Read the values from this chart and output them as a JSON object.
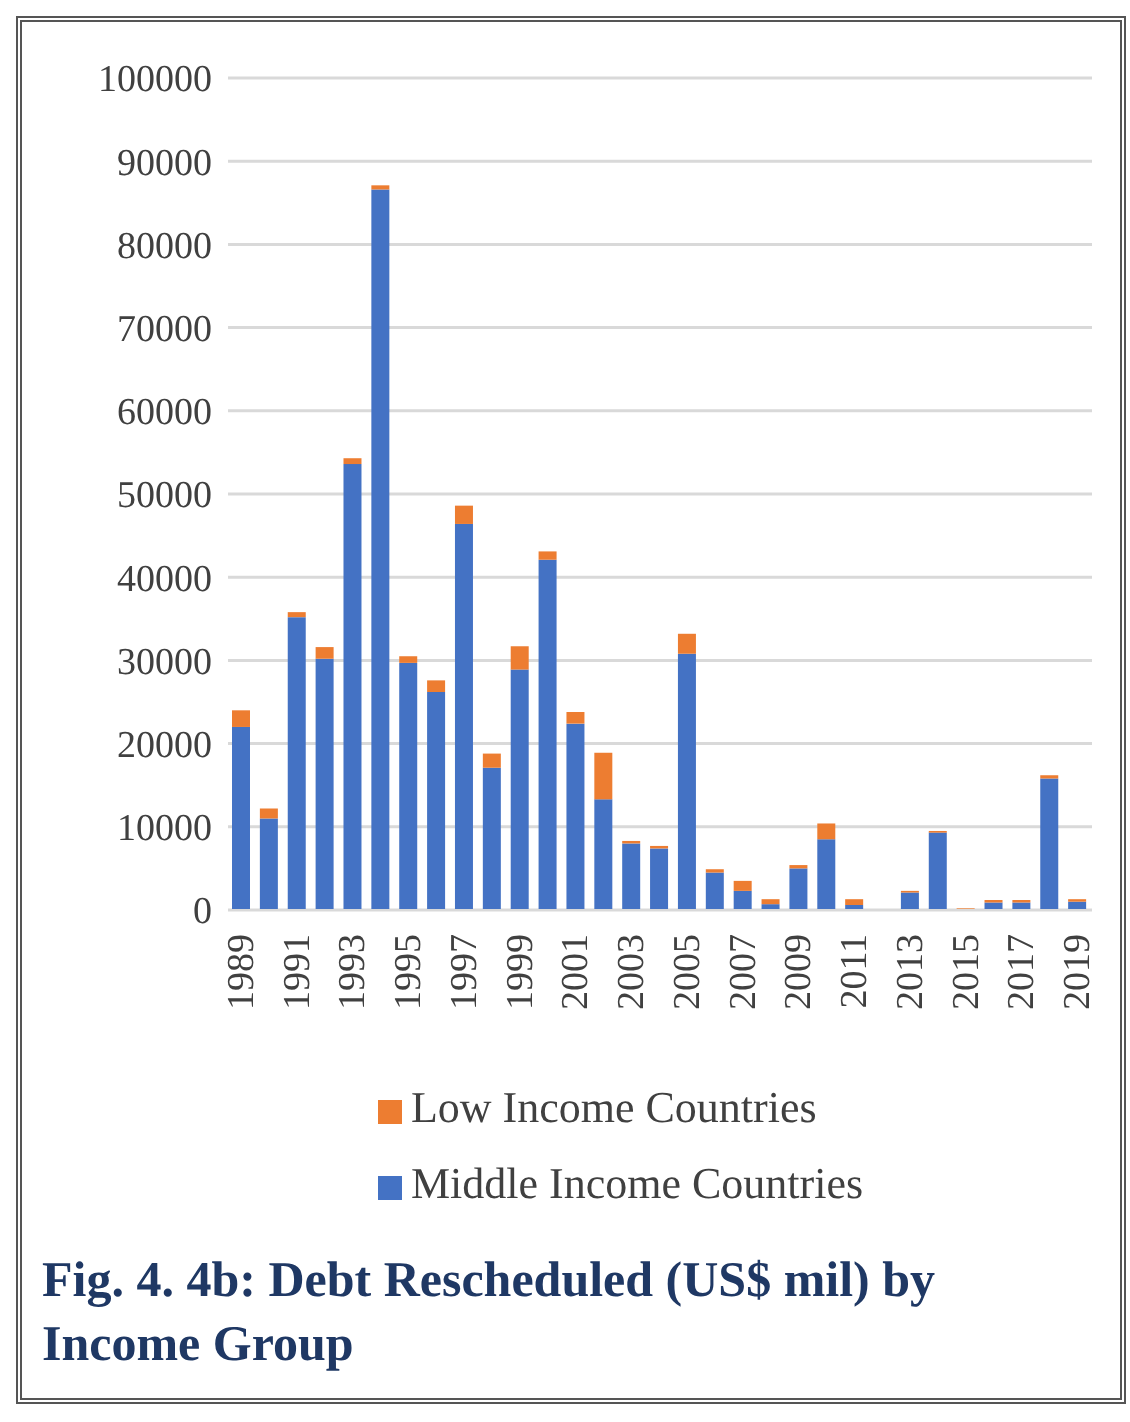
{
  "chart_data": {
    "type": "bar",
    "title": "Fig. 4. 4b: Debt Rescheduled (US$ mil) by Income Group",
    "stacked": true,
    "categories": [
      "1989",
      null,
      "1991",
      null,
      "1993",
      null,
      "1995",
      null,
      "1997",
      null,
      "1999",
      null,
      "2001",
      null,
      "2003",
      null,
      "2005",
      null,
      "2007",
      null,
      "2009",
      null,
      "2011",
      null,
      "2013",
      null,
      "2015",
      null,
      "2017",
      null,
      "2019"
    ],
    "series": [
      {
        "name": "Middle Income Countries",
        "color": "#4472c4",
        "values": [
          22000,
          11000,
          35200,
          30200,
          53600,
          86600,
          29700,
          26200,
          46400,
          17100,
          28900,
          42100,
          22400,
          13300,
          8000,
          7400,
          30800,
          4500,
          2300,
          700,
          5000,
          8500,
          600,
          0,
          2100,
          9300,
          0,
          900,
          900,
          15800,
          1000
        ]
      },
      {
        "name": "Low Income Countries",
        "color": "#ed7d31",
        "values": [
          2000,
          1200,
          600,
          1400,
          700,
          500,
          800,
          1400,
          2200,
          1700,
          2800,
          1000,
          1400,
          5600,
          300,
          300,
          2400,
          400,
          1200,
          600,
          400,
          1900,
          700,
          null,
          200,
          200,
          200,
          300,
          300,
          400,
          300
        ]
      }
    ],
    "ylim": [
      0,
      100000
    ],
    "yticks": [
      0,
      10000,
      20000,
      30000,
      40000,
      50000,
      60000,
      70000,
      80000,
      90000,
      100000
    ],
    "grid": "y",
    "legend": "bottom"
  }
}
